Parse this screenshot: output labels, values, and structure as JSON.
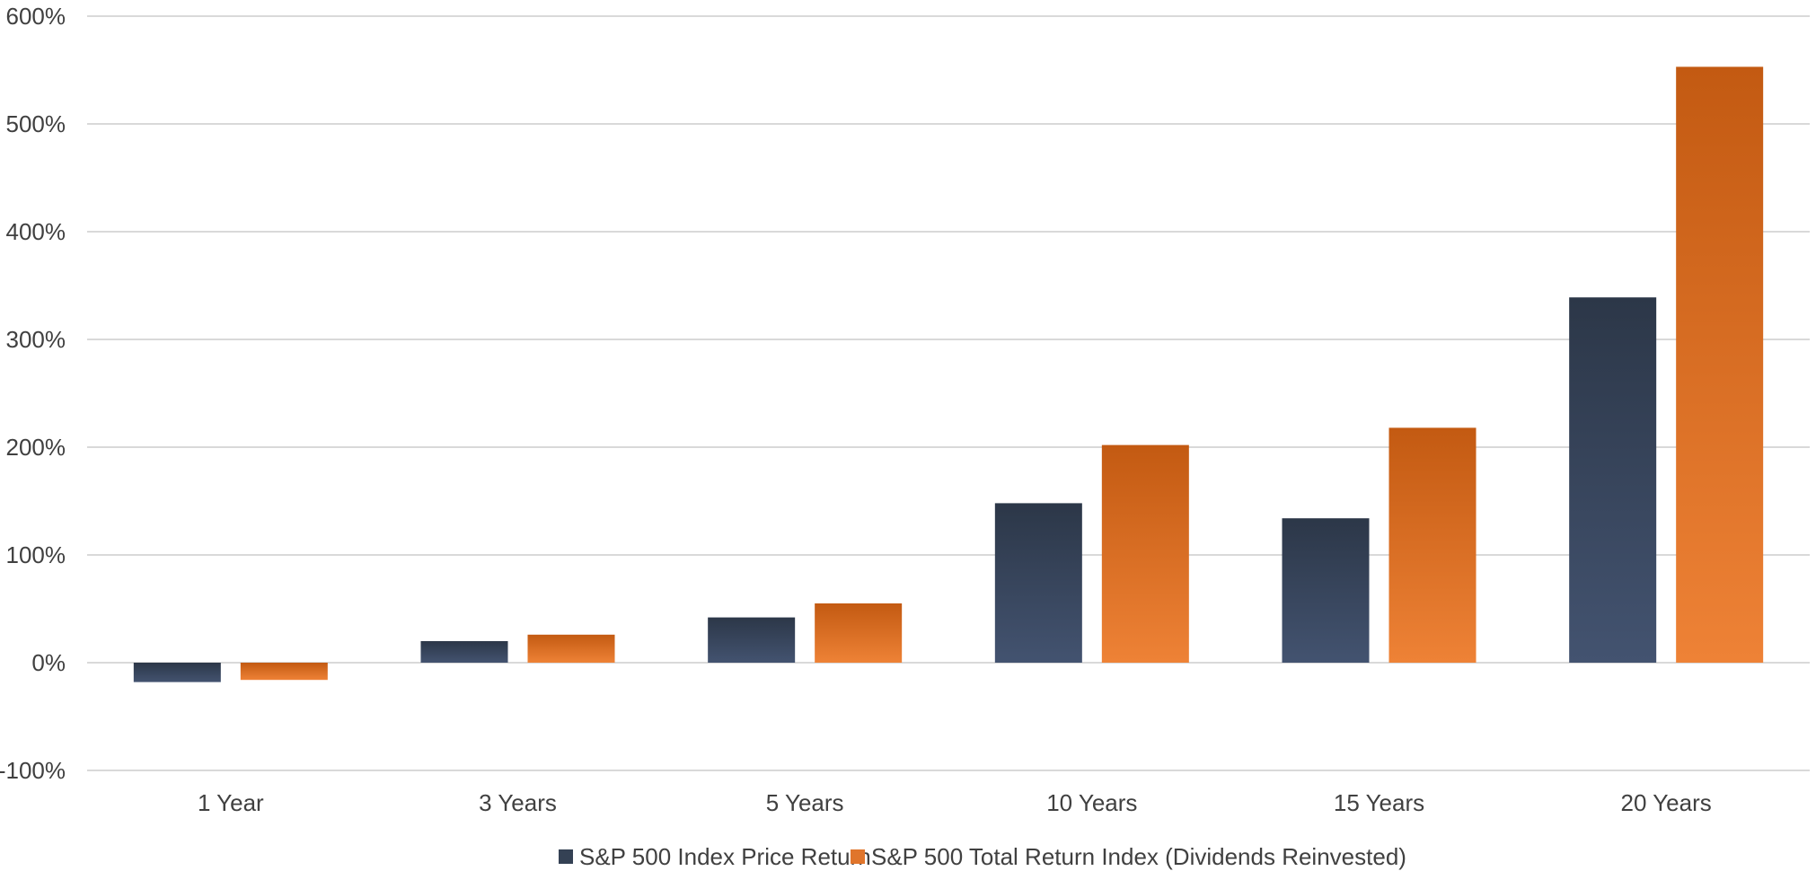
{
  "chart_data": {
    "type": "bar",
    "title": "",
    "xlabel": "",
    "ylabel": "",
    "categories": [
      "1 Year",
      "3 Years",
      "5 Years",
      "10 Years",
      "15 Years",
      "20 Years"
    ],
    "series": [
      {
        "name": "S&P 500 Index Price Return",
        "color": "#344154",
        "values": [
          -18,
          20,
          42,
          148,
          134,
          339
        ]
      },
      {
        "name": "S&P 500 Total Return Index (Dividends Reinvested)",
        "color": "#E0752B",
        "values": [
          -16,
          26,
          55,
          202,
          218,
          553
        ]
      }
    ],
    "ylim": [
      -100,
      600
    ],
    "yticks": [
      -100,
      0,
      100,
      200,
      300,
      400,
      500,
      600
    ],
    "ytick_labels": [
      "-100%",
      "0%",
      "100%",
      "200%",
      "300%",
      "400%",
      "500%",
      "600%"
    ],
    "grid": true,
    "legend_position": "bottom-center"
  }
}
